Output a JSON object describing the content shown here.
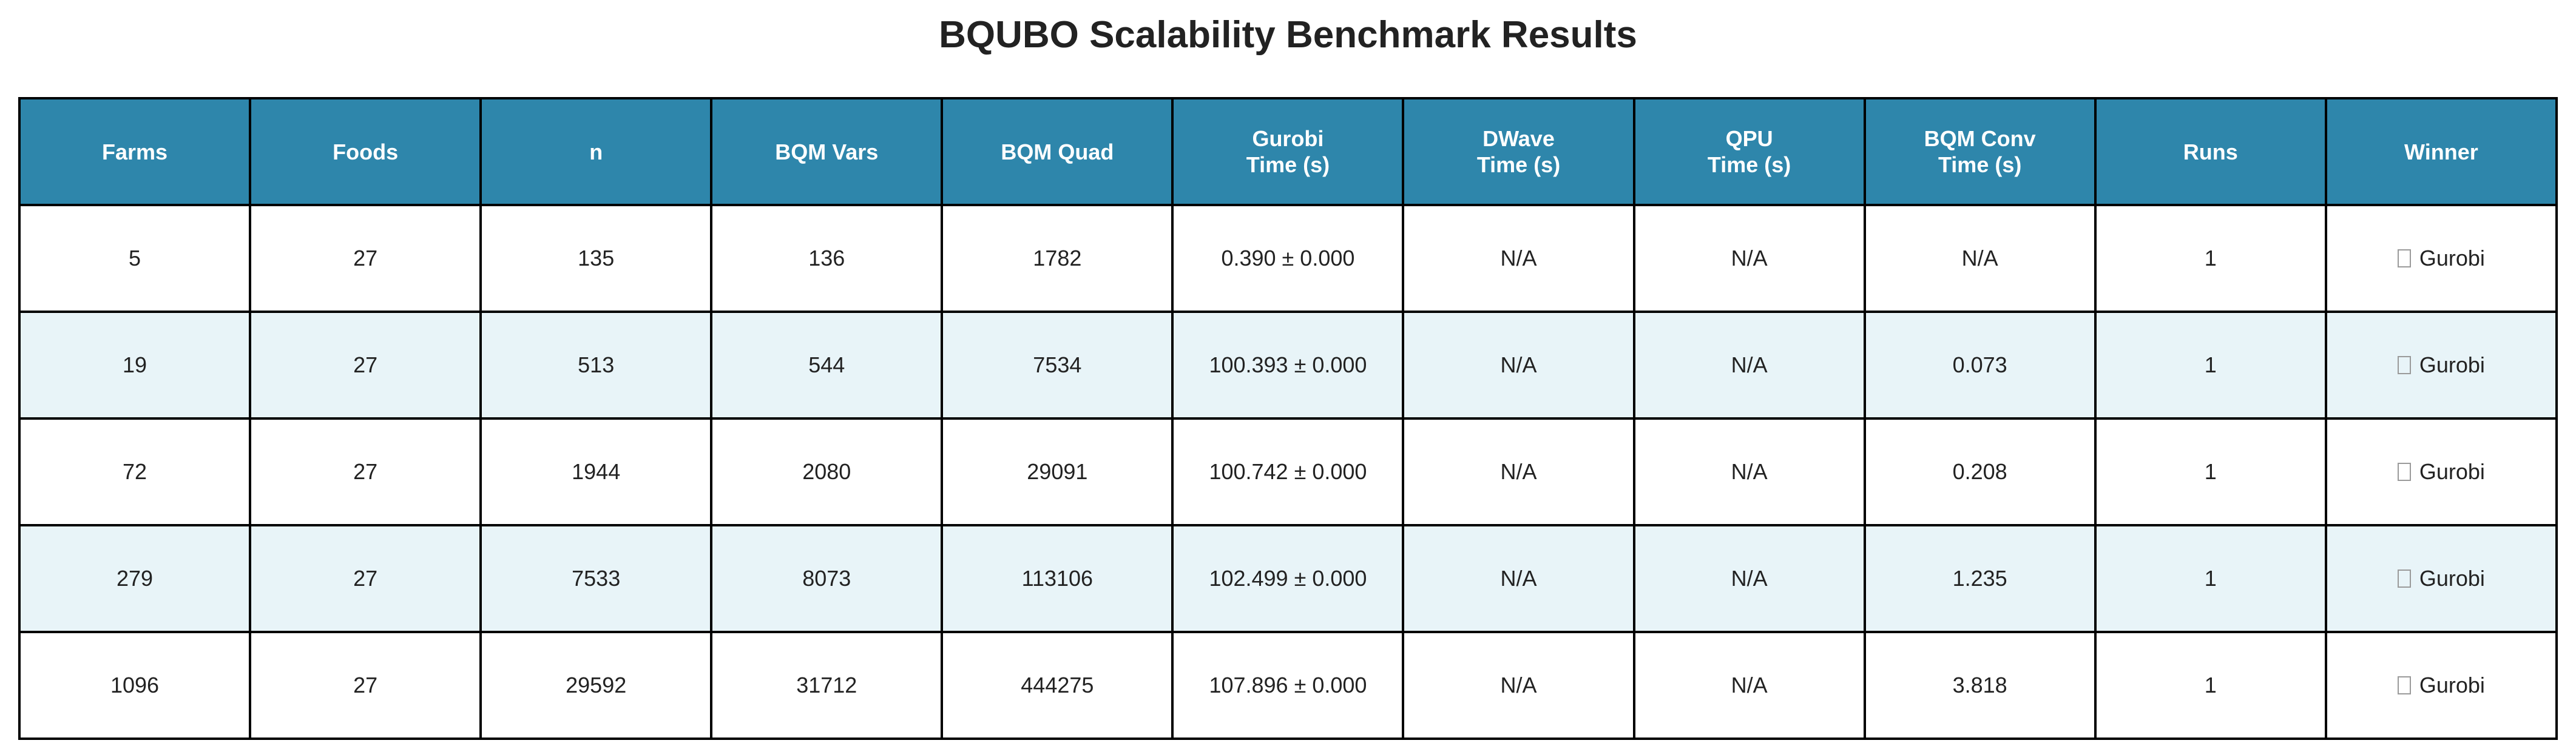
{
  "chart_data": {
    "type": "table",
    "title": "BQUBO Scalability Benchmark Results",
    "columns": [
      "Farms",
      "Foods",
      "n",
      "BQM Vars",
      "BQM Quad",
      "Gurobi\nTime (s)",
      "DWave\nTime (s)",
      "QPU\nTime (s)",
      "BQM Conv\nTime (s)",
      "Runs",
      "Winner"
    ],
    "rows": [
      [
        "5",
        "27",
        "135",
        "136",
        "1782",
        "0.390 ± 0.000",
        "N/A",
        "N/A",
        "N/A",
        "1",
        "Gurobi"
      ],
      [
        "19",
        "27",
        "513",
        "544",
        "7534",
        "100.393 ± 0.000",
        "N/A",
        "N/A",
        "0.073",
        "1",
        "Gurobi"
      ],
      [
        "72",
        "27",
        "1944",
        "2080",
        "29091",
        "100.742 ± 0.000",
        "N/A",
        "N/A",
        "0.208",
        "1",
        "Gurobi"
      ],
      [
        "279",
        "27",
        "7533",
        "8073",
        "113106",
        "102.499 ± 0.000",
        "N/A",
        "N/A",
        "1.235",
        "1",
        "Gurobi"
      ],
      [
        "1096",
        "27",
        "29592",
        "31712",
        "444275",
        "107.896 ± 0.000",
        "N/A",
        "N/A",
        "3.818",
        "1",
        "Gurobi"
      ]
    ],
    "winner_icon": "missing-glyph-icon",
    "colors": {
      "header_bg": "#2e86ab",
      "header_text": "#ffffff",
      "row_even_bg": "#ffffff",
      "row_odd_bg": "#e8f4f8",
      "border": "#000000"
    }
  }
}
